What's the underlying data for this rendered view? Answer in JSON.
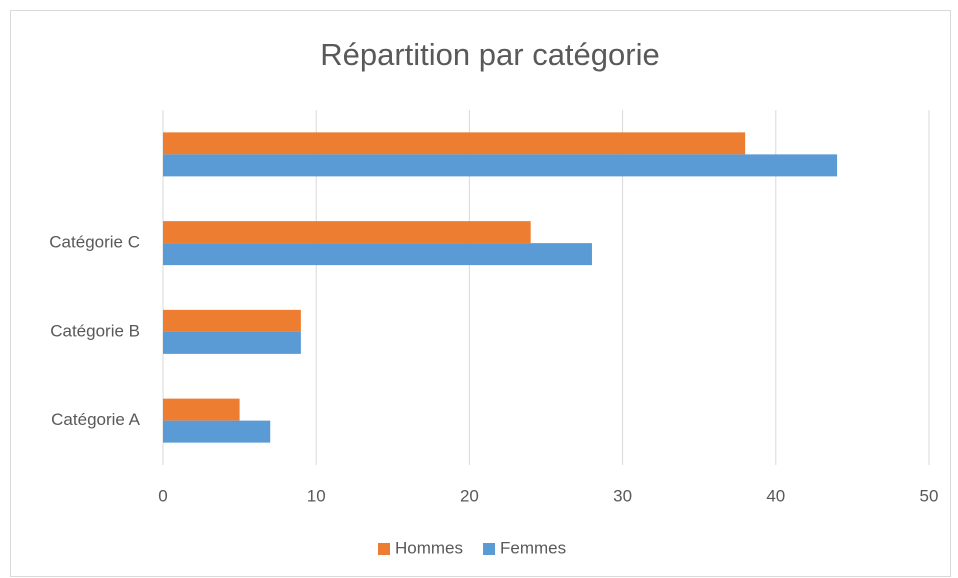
{
  "chart_data": {
    "type": "barh",
    "title": "Répartition par catégorie",
    "categories": [
      "Catégorie A",
      "Catégorie B",
      "Catégorie C",
      null
    ],
    "series": [
      {
        "name": "Hommes",
        "color": "#ed7d31",
        "values": [
          5,
          9,
          24,
          38
        ]
      },
      {
        "name": "Femmes",
        "color": "#5b9bd5",
        "values": [
          7,
          9,
          28,
          44
        ]
      }
    ],
    "xlim": [
      0,
      50
    ],
    "xticks": [
      0,
      10,
      20,
      30,
      40,
      50
    ],
    "grid": true,
    "legend": "bottom"
  }
}
